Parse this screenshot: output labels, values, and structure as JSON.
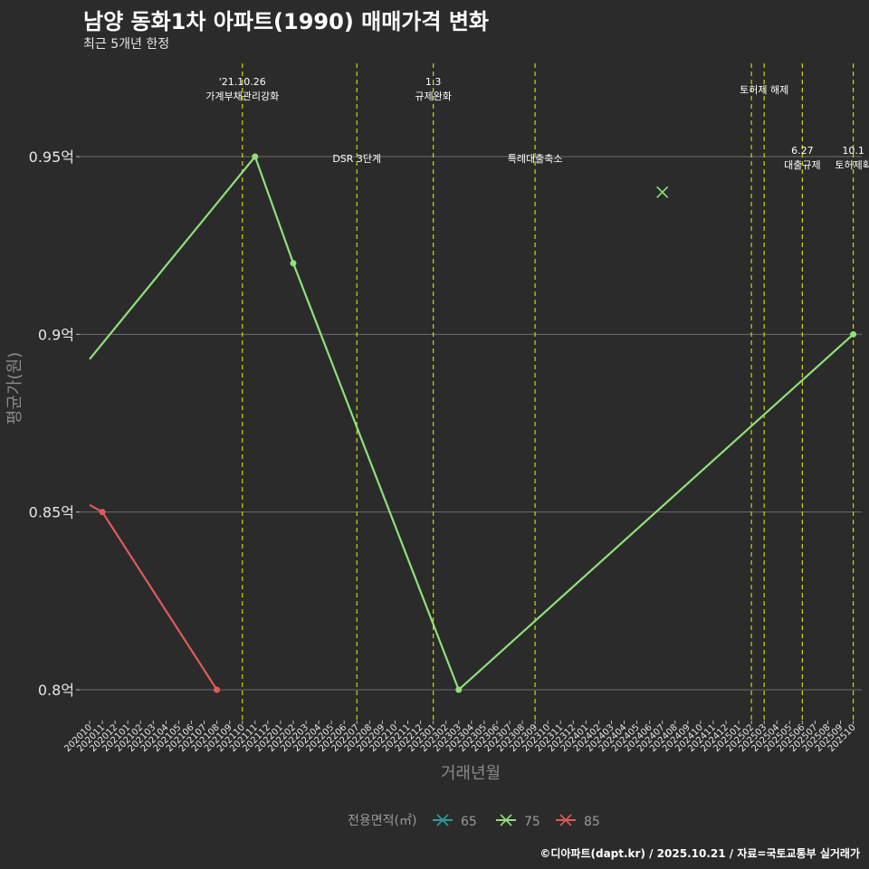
{
  "title": "남양 동화1차 아파트(1990) 매매가격 변화",
  "subtitle": "최근 5개년 한정",
  "caption": "©디아파트(dapt.kr) / 2025.10.21 / 자료=국토교통부 실거래가",
  "colors": {
    "background": "#2b2b2b",
    "grid": "#6e6e6e",
    "event_line": "#d4d400",
    "s65": "#2a9d9d",
    "s75": "#90e07c",
    "s85": "#e05a5a"
  },
  "chart_data": {
    "type": "line",
    "title": "남양 동화1차 아파트(1990) 매매가격 변화",
    "xlabel": "거래년월",
    "ylabel": "평균가(원)",
    "ylim": [
      0.79,
      0.975
    ],
    "x_months": [
      "202010",
      "202011",
      "202012",
      "202101",
      "202102",
      "202103",
      "202104",
      "202105",
      "202106",
      "202107",
      "202108",
      "202109",
      "202110",
      "202111",
      "202112",
      "202201",
      "202202",
      "202203",
      "202204",
      "202205",
      "202206",
      "202207",
      "202208",
      "202209",
      "202210",
      "202211",
      "202212",
      "202301",
      "202302",
      "202303",
      "202304",
      "202305",
      "202306",
      "202307",
      "202308",
      "202309",
      "202310",
      "202311",
      "202312",
      "202401",
      "202402",
      "202403",
      "202404",
      "202405",
      "202406",
      "202407",
      "202408",
      "202409",
      "202410",
      "202411",
      "202412",
      "202501",
      "202502",
      "202503",
      "202504",
      "202505",
      "202506",
      "202507",
      "202508",
      "202509",
      "202510"
    ],
    "x_tick_labels": [
      "202010",
      "202011",
      "202012",
      "202101",
      "202102",
      "202103",
      "202104",
      "202105",
      "202106",
      "202107",
      "202108",
      "202109",
      "202110",
      "202111",
      "202112",
      "202201",
      "202202",
      "202203",
      "202204",
      "202205",
      "202206",
      "202207",
      "202208",
      "202209",
      "202210",
      "202211",
      "202212",
      "202301",
      "202302",
      "202303",
      "202304",
      "202305",
      "202306",
      "202307",
      "202308",
      "202309",
      "202310",
      "202311",
      "202312",
      "202401",
      "202402",
      "202403",
      "202404",
      "202405",
      "202406",
      "202407",
      "202408",
      "202409",
      "202410",
      "202411",
      "202412",
      "202501",
      "202502",
      "202503",
      "202504",
      "202505",
      "202506",
      "202507",
      "202508",
      "202509",
      "202510"
    ],
    "y_ticks": [
      {
        "value": 0.8,
        "label": "0.8억"
      },
      {
        "value": 0.85,
        "label": "0.85억"
      },
      {
        "value": 0.9,
        "label": "0.9억"
      },
      {
        "value": 0.95,
        "label": "0.95억"
      }
    ],
    "legend": {
      "title": "전용면적(㎡)",
      "position": "bottom",
      "entries": [
        "65",
        "75",
        "85"
      ]
    },
    "series": [
      {
        "name": "65",
        "color_key": "s65",
        "points": []
      },
      {
        "name": "75",
        "color_key": "s75",
        "line": [
          [
            0,
            0.893
          ],
          [
            13,
            0.95
          ],
          [
            16,
            0.92
          ],
          [
            29,
            0.8
          ],
          [
            60,
            0.9
          ]
        ],
        "points": [
          [
            13,
            0.95
          ],
          [
            16,
            0.92
          ],
          [
            29,
            0.8
          ],
          [
            60,
            0.9
          ]
        ]
      },
      {
        "name": "85",
        "color_key": "s85",
        "line": [
          [
            0,
            0.852
          ],
          [
            1,
            0.85
          ],
          [
            10,
            0.8
          ]
        ],
        "points": [
          [
            1,
            0.85
          ],
          [
            10,
            0.8
          ]
        ]
      }
    ],
    "markers": [
      {
        "series": "75",
        "x": 45,
        "y": 0.94,
        "shape": "x"
      }
    ],
    "events": [
      {
        "x": 12,
        "label": [
          "'21.10.26",
          "가계부채관리강화"
        ],
        "level": "top"
      },
      {
        "x": 21,
        "label": [
          "DSR 3단계"
        ],
        "level": "mid"
      },
      {
        "x": 27,
        "label": [
          "1.3",
          "규제완화"
        ],
        "level": "top"
      },
      {
        "x": 35,
        "label": [
          "특례대출축소"
        ],
        "level": "mid"
      },
      {
        "x": 52,
        "label": [],
        "level": "top"
      },
      {
        "x": 53,
        "label": [
          "토허제 해제"
        ],
        "level": "top"
      },
      {
        "x": 56,
        "label": [
          "6.27",
          "대출규제"
        ],
        "level": "low"
      },
      {
        "x": 60,
        "label": [
          "10.1",
          "토허제확"
        ],
        "level": "low"
      }
    ]
  }
}
